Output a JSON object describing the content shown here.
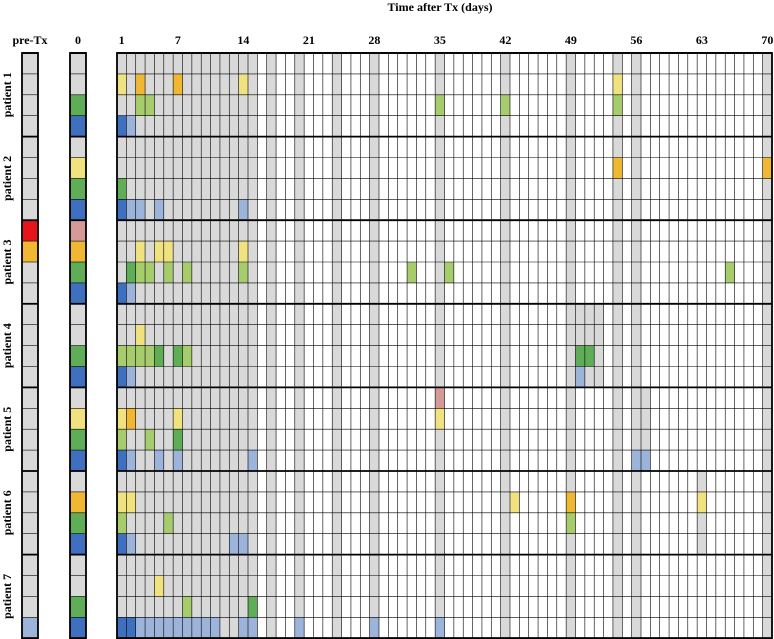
{
  "chart_data": {
    "type": "heatmap",
    "title": "Time after Tx (days)",
    "columns": {
      "pre_label": "pre-Tx",
      "day0_label": "0",
      "day_ticks": [
        "1",
        "7",
        "14",
        "21",
        "28",
        "35",
        "42",
        "49",
        "56",
        "63",
        "70"
      ],
      "day_tick_values": [
        1,
        7,
        14,
        21,
        28,
        35,
        42,
        49,
        56,
        63,
        70
      ],
      "day_range": [
        1,
        70
      ]
    },
    "rows_per_patient": 4,
    "patients": [
      {
        "label": "patient 1",
        "sampled_days": [
          1,
          2,
          3,
          4,
          5,
          6,
          7,
          8,
          9,
          10,
          11,
          12,
          13,
          14,
          15,
          17,
          20,
          24,
          28,
          35,
          42,
          49,
          54,
          56,
          70
        ],
        "pre": [
          "gray",
          "gray",
          "gray",
          "gray"
        ],
        "day0": [
          "gray",
          "gray",
          "green",
          "blue"
        ],
        "marks": [
          [
            2,
            1,
            "yellow"
          ],
          [
            2,
            3,
            "orange"
          ],
          [
            2,
            7,
            "orange"
          ],
          [
            2,
            14,
            "yellow"
          ],
          [
            2,
            54,
            "yellow"
          ],
          [
            3,
            3,
            "lime"
          ],
          [
            3,
            4,
            "lime"
          ],
          [
            3,
            35,
            "lime"
          ],
          [
            3,
            42,
            "lime"
          ],
          [
            3,
            54,
            "lime"
          ],
          [
            4,
            1,
            "blue"
          ],
          [
            4,
            2,
            "lightblue"
          ]
        ]
      },
      {
        "label": "patient 2",
        "sampled_days": [
          1,
          2,
          3,
          4,
          5,
          6,
          7,
          8,
          9,
          10,
          11,
          12,
          13,
          14,
          15,
          17,
          20,
          24,
          28,
          35,
          42,
          49,
          54,
          56,
          70
        ],
        "pre": [
          "gray",
          "gray",
          "gray",
          "gray"
        ],
        "day0": [
          "gray",
          "yellow",
          "green",
          "blue"
        ],
        "marks": [
          [
            2,
            54,
            "orange"
          ],
          [
            2,
            70,
            "orange"
          ],
          [
            3,
            1,
            "green"
          ],
          [
            4,
            1,
            "blue"
          ],
          [
            4,
            2,
            "lightblue"
          ],
          [
            4,
            3,
            "lightblue"
          ],
          [
            4,
            5,
            "lightblue"
          ],
          [
            4,
            14,
            "lightblue"
          ]
        ]
      },
      {
        "label": "patient 3",
        "sampled_days": [
          1,
          2,
          3,
          4,
          5,
          6,
          7,
          8,
          9,
          10,
          11,
          12,
          13,
          14,
          15,
          17,
          20,
          24,
          28,
          35,
          42,
          49,
          54,
          56,
          70
        ],
        "pre": [
          "red",
          "orange",
          "gray",
          "gray"
        ],
        "day0": [
          "pink",
          "orange",
          "green",
          "blue"
        ],
        "marks": [
          [
            2,
            3,
            "yellow"
          ],
          [
            2,
            5,
            "yellow"
          ],
          [
            2,
            6,
            "yellow"
          ],
          [
            2,
            14,
            "yellow"
          ],
          [
            3,
            2,
            "green"
          ],
          [
            3,
            3,
            "lime"
          ],
          [
            3,
            4,
            "lime"
          ],
          [
            3,
            6,
            "lime"
          ],
          [
            3,
            8,
            "lime"
          ],
          [
            3,
            14,
            "lime"
          ],
          [
            3,
            32,
            "lime"
          ],
          [
            3,
            36,
            "lime"
          ],
          [
            3,
            66,
            "lime"
          ],
          [
            4,
            1,
            "blue"
          ],
          [
            4,
            2,
            "lightblue"
          ]
        ]
      },
      {
        "label": "patient 4",
        "sampled_days": [
          1,
          2,
          3,
          4,
          5,
          6,
          7,
          8,
          9,
          10,
          11,
          12,
          13,
          14,
          15,
          17,
          20,
          24,
          28,
          35,
          42,
          49,
          50,
          51,
          52,
          54,
          56,
          70
        ],
        "pre": [
          "gray",
          "gray",
          "gray",
          "gray"
        ],
        "day0": [
          "gray",
          "gray",
          "green",
          "blue"
        ],
        "marks": [
          [
            2,
            3,
            "yellow"
          ],
          [
            3,
            1,
            "lime"
          ],
          [
            3,
            2,
            "lime"
          ],
          [
            3,
            3,
            "lime"
          ],
          [
            3,
            4,
            "lime"
          ],
          [
            3,
            5,
            "green"
          ],
          [
            3,
            7,
            "green"
          ],
          [
            3,
            8,
            "lime"
          ],
          [
            3,
            50,
            "green"
          ],
          [
            3,
            51,
            "green"
          ],
          [
            4,
            1,
            "blue"
          ],
          [
            4,
            2,
            "lightblue"
          ],
          [
            4,
            50,
            "lightblue"
          ]
        ]
      },
      {
        "label": "patient 5",
        "sampled_days": [
          1,
          2,
          3,
          4,
          5,
          6,
          7,
          8,
          9,
          10,
          11,
          12,
          13,
          14,
          15,
          17,
          20,
          24,
          28,
          35,
          42,
          49,
          54,
          56,
          57,
          70
        ],
        "pre": [
          "gray",
          "gray",
          "gray",
          "gray"
        ],
        "day0": [
          "gray",
          "yellow",
          "green",
          "blue"
        ],
        "marks": [
          [
            1,
            35,
            "pink"
          ],
          [
            2,
            1,
            "yellow"
          ],
          [
            2,
            2,
            "orange"
          ],
          [
            2,
            7,
            "yellow"
          ],
          [
            2,
            35,
            "yellow"
          ],
          [
            3,
            1,
            "lime"
          ],
          [
            3,
            4,
            "lime"
          ],
          [
            3,
            7,
            "green"
          ],
          [
            4,
            1,
            "blue"
          ],
          [
            4,
            2,
            "lightblue"
          ],
          [
            4,
            5,
            "lightblue"
          ],
          [
            4,
            7,
            "lightblue"
          ],
          [
            4,
            15,
            "lightblue"
          ],
          [
            4,
            56,
            "lightblue"
          ],
          [
            4,
            57,
            "lightblue"
          ]
        ]
      },
      {
        "label": "patient 6",
        "sampled_days": [
          1,
          2,
          3,
          4,
          5,
          6,
          7,
          8,
          9,
          10,
          11,
          12,
          13,
          14,
          15,
          17,
          20,
          24,
          28,
          35,
          42,
          49,
          54,
          56,
          63,
          70
        ],
        "pre": [
          "gray",
          "gray",
          "gray",
          "gray"
        ],
        "day0": [
          "gray",
          "orange",
          "green",
          "blue"
        ],
        "marks": [
          [
            2,
            1,
            "yellow"
          ],
          [
            2,
            2,
            "yellow"
          ],
          [
            2,
            43,
            "yellow"
          ],
          [
            2,
            49,
            "orange"
          ],
          [
            2,
            63,
            "yellow"
          ],
          [
            3,
            1,
            "lime"
          ],
          [
            3,
            6,
            "lime"
          ],
          [
            3,
            49,
            "lime"
          ],
          [
            4,
            1,
            "blue"
          ],
          [
            4,
            2,
            "lightblue"
          ],
          [
            4,
            13,
            "lightblue"
          ],
          [
            4,
            14,
            "lightblue"
          ]
        ]
      },
      {
        "label": "patient 7",
        "sampled_days": [
          1,
          2,
          3,
          4,
          5,
          6,
          7,
          8,
          9,
          10,
          11,
          12,
          13,
          14,
          15,
          17,
          20,
          24,
          28,
          35,
          42,
          49,
          54,
          56,
          70
        ],
        "pre": [
          "gray",
          "gray",
          "gray",
          "lightblue"
        ],
        "day0": [
          "gray",
          "gray",
          "green",
          "blue"
        ],
        "marks": [
          [
            2,
            5,
            "yellow"
          ],
          [
            3,
            8,
            "lime"
          ],
          [
            3,
            15,
            "green"
          ],
          [
            4,
            1,
            "blue"
          ],
          [
            4,
            2,
            "blue"
          ],
          [
            4,
            3,
            "lightblue"
          ],
          [
            4,
            4,
            "lightblue"
          ],
          [
            4,
            5,
            "lightblue"
          ],
          [
            4,
            6,
            "lightblue"
          ],
          [
            4,
            7,
            "lightblue"
          ],
          [
            4,
            8,
            "lightblue"
          ],
          [
            4,
            9,
            "lightblue"
          ],
          [
            4,
            10,
            "lightblue"
          ],
          [
            4,
            11,
            "lightblue"
          ],
          [
            4,
            14,
            "lightblue"
          ],
          [
            4,
            15,
            "lightblue"
          ],
          [
            4,
            20,
            "lightblue"
          ],
          [
            4,
            28,
            "lightblue"
          ],
          [
            4,
            35,
            "lightblue"
          ]
        ]
      }
    ],
    "color_map": {
      "gray": "#d9d9d9",
      "red": "#e8141c",
      "orange": "#f0b733",
      "yellow": "#f0e27f",
      "pink": "#d39a98",
      "green": "#5fad56",
      "lime": "#a6cc6b",
      "blue": "#3f6fbf",
      "lightblue": "#9db4da"
    }
  }
}
